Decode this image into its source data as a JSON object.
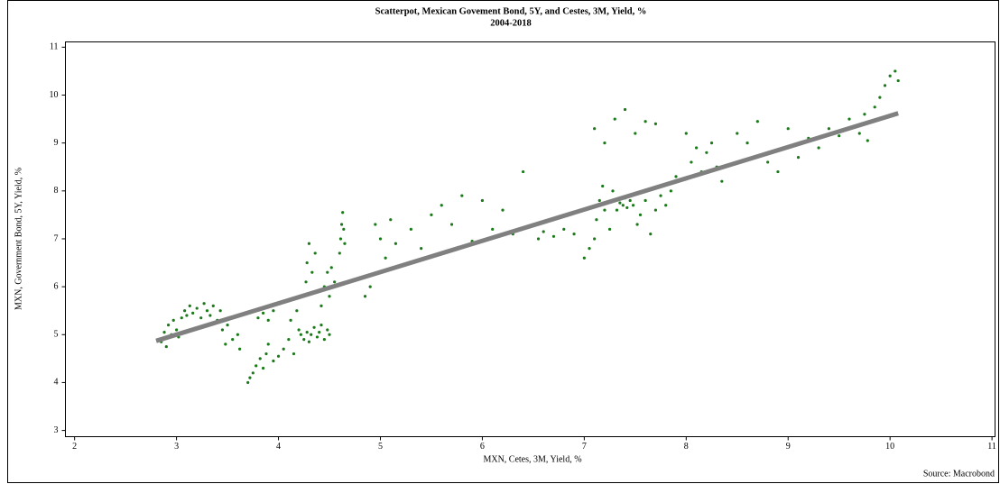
{
  "chart_data": {
    "type": "scatter",
    "title": "Scatterpot, Mexican Govement Bond, 5Y, and Cestes, 3M, Yield, %",
    "subtitle": "2004-2018",
    "x_label": "MXN, Cetes, 3M, Yield, %",
    "y_label": "MXN, Government Bond, 5Y, Yield, %",
    "source": "Source: Macrobond",
    "xlim": [
      1.91,
      11.03
    ],
    "ylim": [
      2.87,
      11.11
    ],
    "xticks": [
      2,
      3,
      4,
      5,
      6,
      7,
      8,
      9,
      10,
      11
    ],
    "yticks": [
      3,
      4,
      5,
      6,
      7,
      8,
      9,
      10,
      11
    ],
    "grid": false,
    "color": "#1a7a1a",
    "x": [
      2.85,
      2.88,
      2.9,
      2.92,
      2.95,
      2.97,
      3.0,
      3.02,
      3.05,
      3.08,
      3.1,
      3.13,
      3.16,
      3.2,
      3.24,
      3.27,
      3.3,
      3.33,
      3.36,
      3.4,
      3.43,
      3.45,
      3.48,
      3.5,
      3.55,
      3.6,
      3.62,
      3.7,
      3.72,
      3.75,
      3.78,
      3.82,
      3.85,
      3.88,
      3.9,
      3.95,
      3.8,
      3.85,
      3.9,
      3.95,
      4.0,
      4.05,
      4.1,
      4.12,
      4.15,
      4.18,
      4.2,
      4.22,
      4.25,
      4.28,
      4.3,
      4.32,
      4.35,
      4.38,
      4.4,
      4.42,
      4.45,
      4.48,
      4.5,
      4.27,
      4.28,
      4.3,
      4.33,
      4.36,
      4.38,
      4.42,
      4.45,
      4.48,
      4.5,
      4.52,
      4.55,
      4.6,
      4.61,
      4.62,
      4.63,
      4.64,
      4.65,
      4.85,
      4.9,
      4.95,
      5.0,
      5.05,
      5.1,
      5.15,
      5.3,
      5.4,
      5.5,
      5.6,
      5.7,
      5.8,
      5.9,
      6.0,
      6.1,
      6.2,
      6.3,
      6.4,
      6.5,
      6.55,
      6.6,
      6.7,
      6.8,
      6.9,
      7.0,
      7.05,
      7.1,
      7.12,
      7.15,
      7.18,
      7.2,
      7.25,
      7.28,
      7.1,
      7.2,
      7.3,
      7.4,
      7.5,
      7.6,
      7.7,
      7.32,
      7.35,
      7.38,
      7.4,
      7.42,
      7.45,
      7.48,
      7.52,
      7.55,
      7.6,
      7.65,
      7.7,
      7.75,
      7.8,
      7.85,
      7.9,
      8.0,
      8.05,
      8.1,
      8.15,
      8.2,
      8.25,
      8.3,
      8.35,
      8.5,
      8.6,
      8.7,
      8.8,
      8.9,
      9.0,
      9.1,
      9.2,
      9.3,
      9.4,
      9.5,
      9.6,
      9.7,
      9.72,
      9.75,
      9.78,
      9.85,
      9.9,
      9.95,
      10.0,
      10.05,
      10.08
    ],
    "values": [
      4.85,
      5.05,
      4.75,
      5.2,
      5.0,
      5.3,
      5.1,
      4.95,
      5.35,
      5.5,
      5.4,
      5.6,
      5.45,
      5.55,
      5.35,
      5.65,
      5.5,
      5.4,
      5.6,
      5.3,
      5.5,
      5.1,
      4.8,
      5.2,
      4.9,
      5.0,
      4.7,
      4.0,
      4.1,
      4.2,
      4.35,
      4.5,
      4.3,
      4.6,
      4.8,
      4.45,
      5.35,
      5.45,
      5.3,
      5.5,
      4.55,
      4.7,
      4.9,
      5.3,
      4.6,
      5.5,
      5.1,
      5.0,
      4.9,
      5.05,
      4.85,
      5.0,
      5.15,
      4.95,
      5.05,
      5.2,
      4.9,
      5.1,
      5.0,
      6.1,
      6.5,
      6.9,
      6.3,
      6.7,
      5.9,
      5.6,
      6.0,
      6.3,
      5.8,
      6.4,
      6.1,
      6.7,
      7.0,
      7.3,
      7.55,
      7.2,
      6.9,
      5.8,
      6.0,
      7.3,
      7.0,
      6.6,
      7.4,
      6.9,
      7.2,
      6.8,
      7.5,
      7.7,
      7.3,
      7.9,
      6.95,
      7.8,
      7.2,
      7.6,
      7.1,
      8.4,
      7.3,
      7.0,
      7.15,
      7.05,
      7.2,
      7.1,
      6.6,
      6.8,
      7.0,
      7.4,
      7.8,
      8.1,
      7.6,
      7.2,
      8.0,
      9.3,
      9.0,
      9.5,
      9.7,
      9.2,
      9.45,
      9.4,
      7.6,
      7.75,
      7.7,
      7.85,
      7.65,
      7.8,
      7.7,
      7.3,
      7.5,
      7.8,
      7.1,
      7.6,
      7.9,
      7.7,
      8.0,
      8.3,
      9.2,
      8.6,
      8.9,
      8.4,
      8.8,
      9.0,
      8.5,
      8.2,
      9.2,
      9.0,
      9.45,
      8.6,
      8.4,
      9.3,
      8.7,
      9.1,
      8.9,
      9.3,
      9.15,
      9.5,
      9.2,
      9.4,
      9.6,
      9.05,
      9.75,
      9.95,
      10.2,
      10.4,
      10.5,
      10.3
    ],
    "trend_line": {
      "x": [
        2.8,
        10.08
      ],
      "values": [
        4.87,
        9.62
      ],
      "color": "#808080"
    }
  }
}
